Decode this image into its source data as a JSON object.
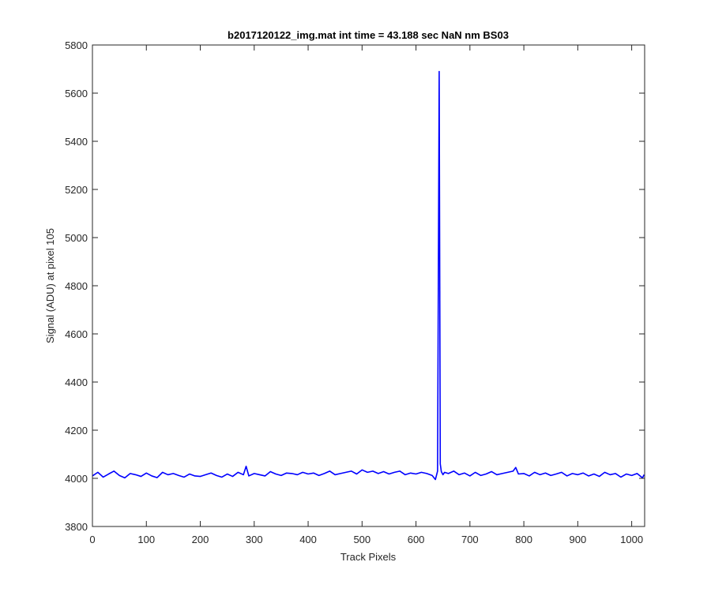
{
  "chart_data": {
    "type": "line",
    "title": "b2017120122_img.mat int time = 43.188 sec  NaN nm BS03",
    "xlabel": "Track Pixels",
    "ylabel": "Signal (ADU) at pixel 105",
    "xlim": [
      0,
      1024
    ],
    "ylim": [
      3800,
      5800
    ],
    "xticks": [
      0,
      100,
      200,
      300,
      400,
      500,
      600,
      700,
      800,
      900,
      1000
    ],
    "xtick_labels": [
      "0",
      "100",
      "200",
      "300",
      "400",
      "500",
      "600",
      "700",
      "800",
      "900",
      "1000"
    ],
    "yticks": [
      3800,
      4000,
      4200,
      4400,
      4600,
      4800,
      5000,
      5200,
      5400,
      5600,
      5800
    ],
    "ytick_labels": [
      "3800",
      "4000",
      "4200",
      "4400",
      "4600",
      "4800",
      "5000",
      "5200",
      "5400",
      "5600",
      "5800"
    ],
    "grid": false,
    "line_color": "#0000ff",
    "series": [
      {
        "x": [
          0,
          10,
          20,
          30,
          40,
          50,
          60,
          70,
          80,
          90,
          100,
          110,
          120,
          130,
          140,
          150,
          160,
          170,
          180,
          190,
          200,
          210,
          220,
          230,
          240,
          250,
          260,
          270,
          280,
          285,
          290,
          300,
          310,
          320,
          330,
          340,
          350,
          360,
          370,
          380,
          390,
          400,
          410,
          420,
          430,
          440,
          450,
          460,
          470,
          480,
          490,
          500,
          510,
          520,
          530,
          540,
          550,
          560,
          570,
          580,
          590,
          600,
          610,
          620,
          630,
          636,
          640,
          643,
          645,
          647,
          650,
          653,
          660,
          670,
          680,
          690,
          700,
          710,
          720,
          730,
          740,
          750,
          760,
          770,
          780,
          785,
          790,
          800,
          810,
          820,
          830,
          840,
          850,
          860,
          870,
          880,
          890,
          900,
          910,
          920,
          930,
          940,
          950,
          960,
          970,
          980,
          990,
          1000,
          1010,
          1020,
          1023
        ],
        "y": [
          4010,
          4025,
          4005,
          4018,
          4030,
          4012,
          4002,
          4020,
          4015,
          4008,
          4022,
          4010,
          4003,
          4025,
          4015,
          4020,
          4012,
          4005,
          4018,
          4010,
          4008,
          4015,
          4022,
          4012,
          4005,
          4018,
          4008,
          4025,
          4015,
          4050,
          4010,
          4020,
          4015,
          4010,
          4028,
          4018,
          4012,
          4022,
          4020,
          4015,
          4025,
          4018,
          4022,
          4012,
          4020,
          4030,
          4015,
          4020,
          4025,
          4030,
          4018,
          4035,
          4025,
          4030,
          4020,
          4028,
          4018,
          4025,
          4030,
          4015,
          4022,
          4018,
          4025,
          4020,
          4012,
          3995,
          4030,
          5690,
          4060,
          4028,
          4015,
          4025,
          4020,
          4030,
          4015,
          4022,
          4010,
          4025,
          4012,
          4018,
          4028,
          4015,
          4020,
          4025,
          4030,
          4045,
          4018,
          4020,
          4010,
          4025,
          4015,
          4022,
          4012,
          4018,
          4025,
          4010,
          4020,
          4015,
          4022,
          4010,
          4018,
          4008,
          4025,
          4015,
          4020,
          4005,
          4018,
          4012,
          4020,
          4002,
          4015
        ]
      }
    ]
  }
}
